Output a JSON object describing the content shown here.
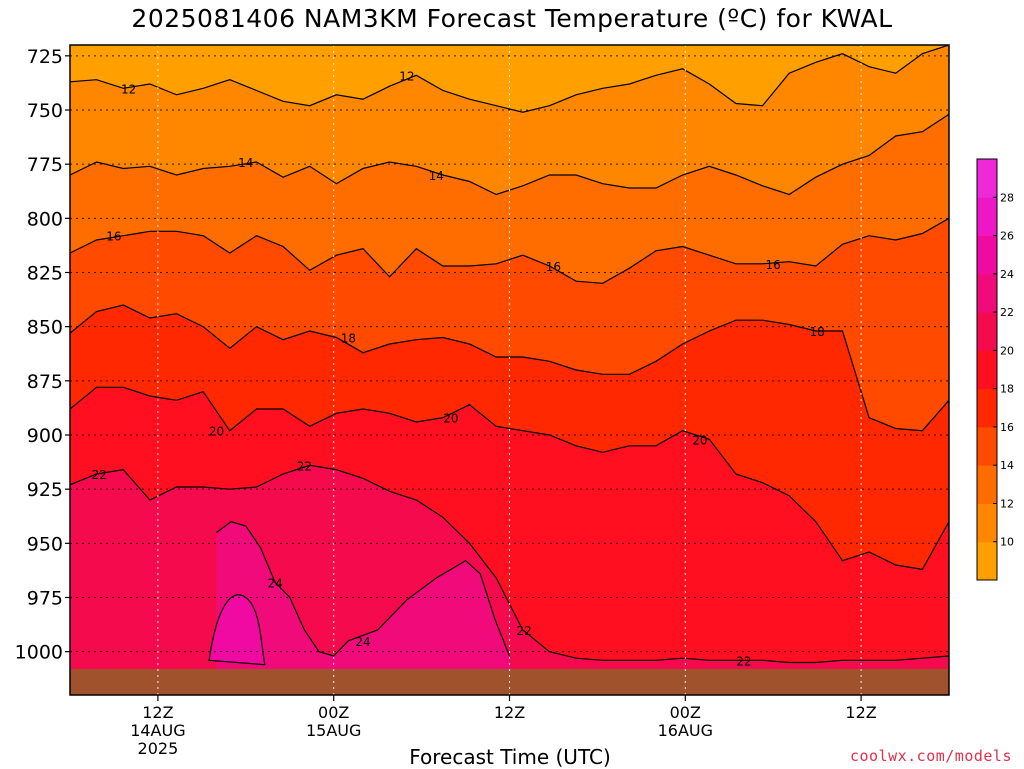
{
  "title": "2025081406 NAM3KM Forecast Temperature (ºC) for KWAL",
  "x_axis_title": "Forecast Time (UTC)",
  "credit": "coolwx.com/models",
  "colors": {
    "t10": "#ff9f00",
    "t12": "#ff8700",
    "t14": "#ff6c00",
    "t16": "#ff4a00",
    "t18": "#ff2800",
    "t20": "#ff0f1f",
    "t22": "#f50a4d",
    "t24": "#f10a7a",
    "t26": "#f00aa2",
    "t28": "#ef16c6",
    "ground": "#a0522d",
    "credit": "#e0304a"
  },
  "chart_data": {
    "type": "heatmap",
    "title": "2025081406 NAM3KM Forecast Temperature (ºC) for KWAL",
    "xlabel": "Forecast Time (UTC)",
    "ylabel": "",
    "y_ticks": [
      725,
      750,
      775,
      800,
      825,
      850,
      875,
      900,
      925,
      950,
      975,
      1000
    ],
    "x_ticks": [
      {
        "hours": 6,
        "label": "12Z",
        "date": "14AUG",
        "year": "2025"
      },
      {
        "hours": 18,
        "label": "00Z",
        "date": "15AUG",
        "year": ""
      },
      {
        "hours": 30,
        "label": "12Z",
        "date": "",
        "year": ""
      },
      {
        "hours": 42,
        "label": "00Z",
        "date": "16AUG",
        "year": ""
      },
      {
        "hours": 54,
        "label": "12Z",
        "date": "",
        "year": ""
      }
    ],
    "xlim_hours": [
      0,
      60
    ],
    "ylim_hPa": [
      1020,
      720
    ],
    "colorbar": {
      "levels": [
        8,
        10,
        12,
        14,
        16,
        18,
        20,
        22,
        24,
        26,
        28,
        30
      ],
      "tick_labels": [
        "10",
        "12",
        "14",
        "16",
        "18",
        "20",
        "22",
        "24",
        "26",
        "28"
      ]
    },
    "isotherms": [
      {
        "value": 12,
        "pressure_hPa": [
          737,
          736,
          740,
          738,
          743,
          740,
          736,
          741,
          746,
          748,
          743,
          745,
          739,
          734,
          741,
          745,
          748,
          751,
          748,
          743,
          740,
          738,
          734,
          731,
          738,
          747,
          748,
          733,
          728,
          724,
          730,
          733,
          724,
          720
        ],
        "labels": [
          {
            "hours": 4,
            "text": "12"
          },
          {
            "hours": 23,
            "text": "12"
          }
        ]
      },
      {
        "value": 14,
        "pressure_hPa": [
          780,
          774,
          777,
          776,
          780,
          777,
          776,
          774,
          781,
          776,
          784,
          777,
          774,
          776,
          780,
          783,
          789,
          785,
          780,
          780,
          784,
          786,
          786,
          780,
          776,
          780,
          785,
          789,
          781,
          775,
          771,
          762,
          760,
          752
        ],
        "labels": [
          {
            "hours": 12,
            "text": "14"
          },
          {
            "hours": 25,
            "text": "14"
          }
        ]
      },
      {
        "value": 16,
        "pressure_hPa": [
          816,
          810,
          808,
          806,
          806,
          808,
          816,
          808,
          813,
          824,
          817,
          814,
          827,
          814,
          822,
          822,
          821,
          817,
          822,
          829,
          830,
          823,
          815,
          813,
          817,
          821,
          821,
          820,
          822,
          812,
          808,
          810,
          807,
          800
        ],
        "labels": [
          {
            "hours": 3,
            "text": "16"
          },
          {
            "hours": 33,
            "text": "16"
          },
          {
            "hours": 48,
            "text": "16"
          }
        ]
      },
      {
        "value": 18,
        "pressure_hPa": [
          853,
          843,
          840,
          846,
          844,
          850,
          860,
          850,
          856,
          852,
          855,
          862,
          858,
          856,
          855,
          858,
          864,
          864,
          866,
          870,
          872,
          872,
          866,
          858,
          852,
          847,
          847,
          849,
          852,
          852,
          892,
          897,
          898,
          884
        ],
        "labels": [
          {
            "hours": 19,
            "text": "18"
          },
          {
            "hours": 51,
            "text": "18"
          }
        ]
      },
      {
        "value": 20,
        "pressure_hPa": [
          888,
          878,
          878,
          882,
          884,
          880,
          898,
          888,
          888,
          896,
          890,
          888,
          890,
          894,
          892,
          886,
          896,
          898,
          900,
          905,
          908,
          905,
          905,
          898,
          902,
          918,
          922,
          928,
          940,
          958,
          954,
          960,
          962,
          940
        ],
        "labels": [
          {
            "hours": 10,
            "text": "20"
          },
          {
            "hours": 26,
            "text": "20"
          },
          {
            "hours": 43,
            "text": "20"
          }
        ]
      },
      {
        "value": 22,
        "pressure_hPa": [
          923,
          918,
          916,
          930,
          924,
          924,
          925,
          924,
          918,
          914,
          916,
          920,
          926,
          930,
          938,
          950,
          966,
          990,
          1000,
          1003,
          1004,
          1004,
          1004,
          1003,
          1004,
          1004,
          1004,
          1005,
          1005,
          1004,
          1004,
          1004,
          1003,
          1002
        ],
        "labels": [
          {
            "hours": 2,
            "text": "22"
          },
          {
            "hours": 16,
            "text": "22"
          },
          {
            "hours": 31,
            "text": "22"
          },
          {
            "hours": 46,
            "text": "22"
          }
        ]
      },
      {
        "value": 24,
        "pressure_hPa": [
          945,
          940,
          942,
          952,
          960,
          968,
          975,
          990,
          1000,
          1002,
          995,
          990,
          976,
          966,
          958,
          964,
          985,
          1002
        ],
        "hours": [
          10,
          11,
          12,
          13,
          13.5,
          14,
          15,
          16,
          17,
          18,
          19,
          21,
          23,
          25,
          27,
          28,
          29,
          30
        ],
        "labels": [
          {
            "hours": 14,
            "text": "24"
          },
          {
            "hours": 20,
            "text": "24"
          }
        ]
      }
    ],
    "ground_pressure_hPa": 1008
  }
}
